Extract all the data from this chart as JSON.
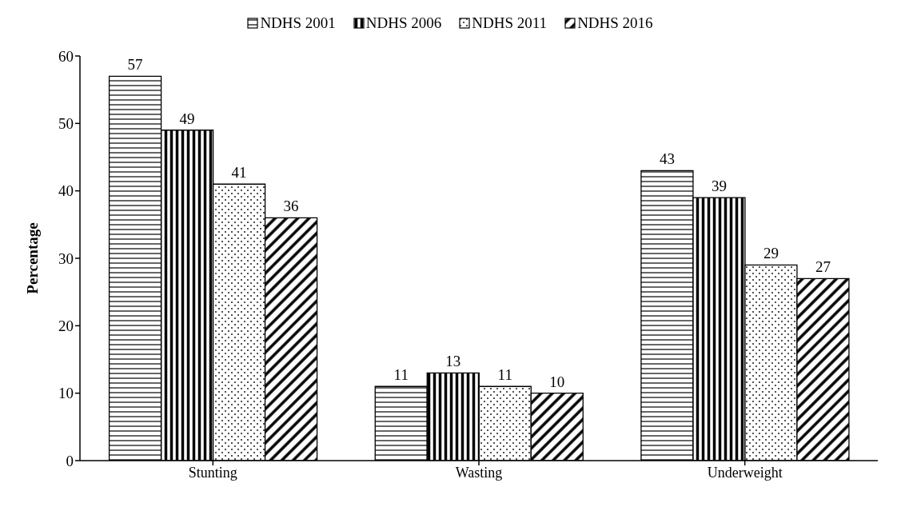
{
  "chart_data": {
    "type": "bar",
    "ylabel": "Percentage",
    "categories": [
      "Stunting",
      "Wasting",
      "Underweight"
    ],
    "series": [
      {
        "name": "NDHS 2001",
        "color": "#000000",
        "values": [
          57,
          11,
          43
        ]
      },
      {
        "name": "NDHS 2006",
        "color": "#000000",
        "values": [
          49,
          13,
          39
        ]
      },
      {
        "name": "NDHS 2011",
        "color": "#000000",
        "values": [
          41,
          11,
          29
        ]
      },
      {
        "name": "NDHS 2016",
        "color": "#000000",
        "values": [
          36,
          10,
          27
        ]
      }
    ],
    "ylim": [
      0,
      60
    ],
    "yticks": [
      0,
      10,
      20,
      30,
      40,
      50,
      60
    ],
    "grid": false,
    "legend": "top",
    "data_labels": true
  }
}
